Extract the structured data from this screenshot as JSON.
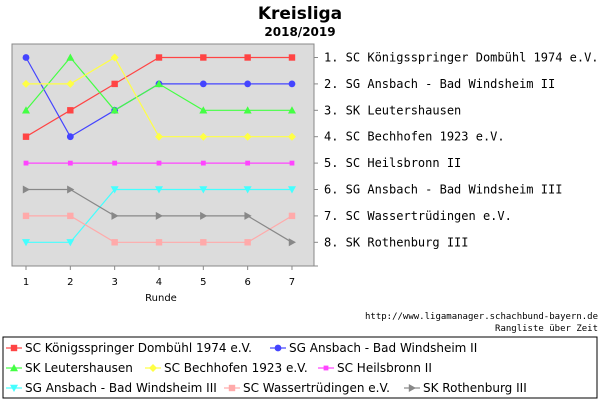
{
  "chart_data": {
    "type": "line",
    "title": "Kreisliga",
    "subtitle": "2018/2019",
    "xlabel": "Runde",
    "ylabel": "",
    "x": [
      1,
      2,
      3,
      4,
      5,
      6,
      7
    ],
    "ylim": [
      1,
      8
    ],
    "y_inverted": true,
    "grid": false,
    "legend_placement": "bottom",
    "rank_labels": [
      "1. SC Königsspringer Dombühl 1974 e.V.",
      "2. SG Ansbach - Bad Windsheim II",
      "3. SK Leutershausen",
      "4. SC Bechhofen 1923 e.V.",
      "5. SC Heilsbronn II",
      "6. SG Ansbach - Bad Windsheim III",
      "7. SC Wassertrüdingen e.V.",
      "8. SK Rothenburg III"
    ],
    "series": [
      {
        "name": "SC Königsspringer Dombühl 1974 e.V.",
        "color": "#ff4444",
        "marker": "square",
        "values": [
          4,
          3,
          2,
          1,
          1,
          1,
          1
        ]
      },
      {
        "name": "SG Ansbach - Bad Windsheim II",
        "color": "#4444ff",
        "marker": "circle",
        "values": [
          1,
          4,
          3,
          2,
          2,
          2,
          2
        ]
      },
      {
        "name": "SK Leutershausen",
        "color": "#44ff44",
        "marker": "triangle-up",
        "values": [
          3,
          1,
          3,
          2,
          3,
          3,
          3
        ]
      },
      {
        "name": "SC Bechhofen 1923 e.V.",
        "color": "#ffff44",
        "marker": "diamond",
        "values": [
          2,
          2,
          1,
          4,
          4,
          4,
          4
        ]
      },
      {
        "name": "SC Heilsbronn II",
        "color": "#ff44ff",
        "marker": "square-small",
        "values": [
          5,
          5,
          5,
          5,
          5,
          5,
          5
        ]
      },
      {
        "name": "SG Ansbach - Bad Windsheim III",
        "color": "#44ffff",
        "marker": "triangle-down",
        "values": [
          8,
          8,
          6,
          6,
          6,
          6,
          6
        ]
      },
      {
        "name": "SC Wassertrüdingen e.V.",
        "color": "#ffaaaa",
        "marker": "square",
        "values": [
          7,
          7,
          8,
          8,
          8,
          8,
          7
        ]
      },
      {
        "name": "SK Rothenburg III",
        "color": "#888888",
        "marker": "triangle-right",
        "values": [
          6,
          6,
          7,
          7,
          7,
          7,
          8
        ]
      }
    ]
  },
  "footer": {
    "url": "http://www.ligamanager.schachbund-bayern.de",
    "caption": "Rangliste über Zeit"
  }
}
